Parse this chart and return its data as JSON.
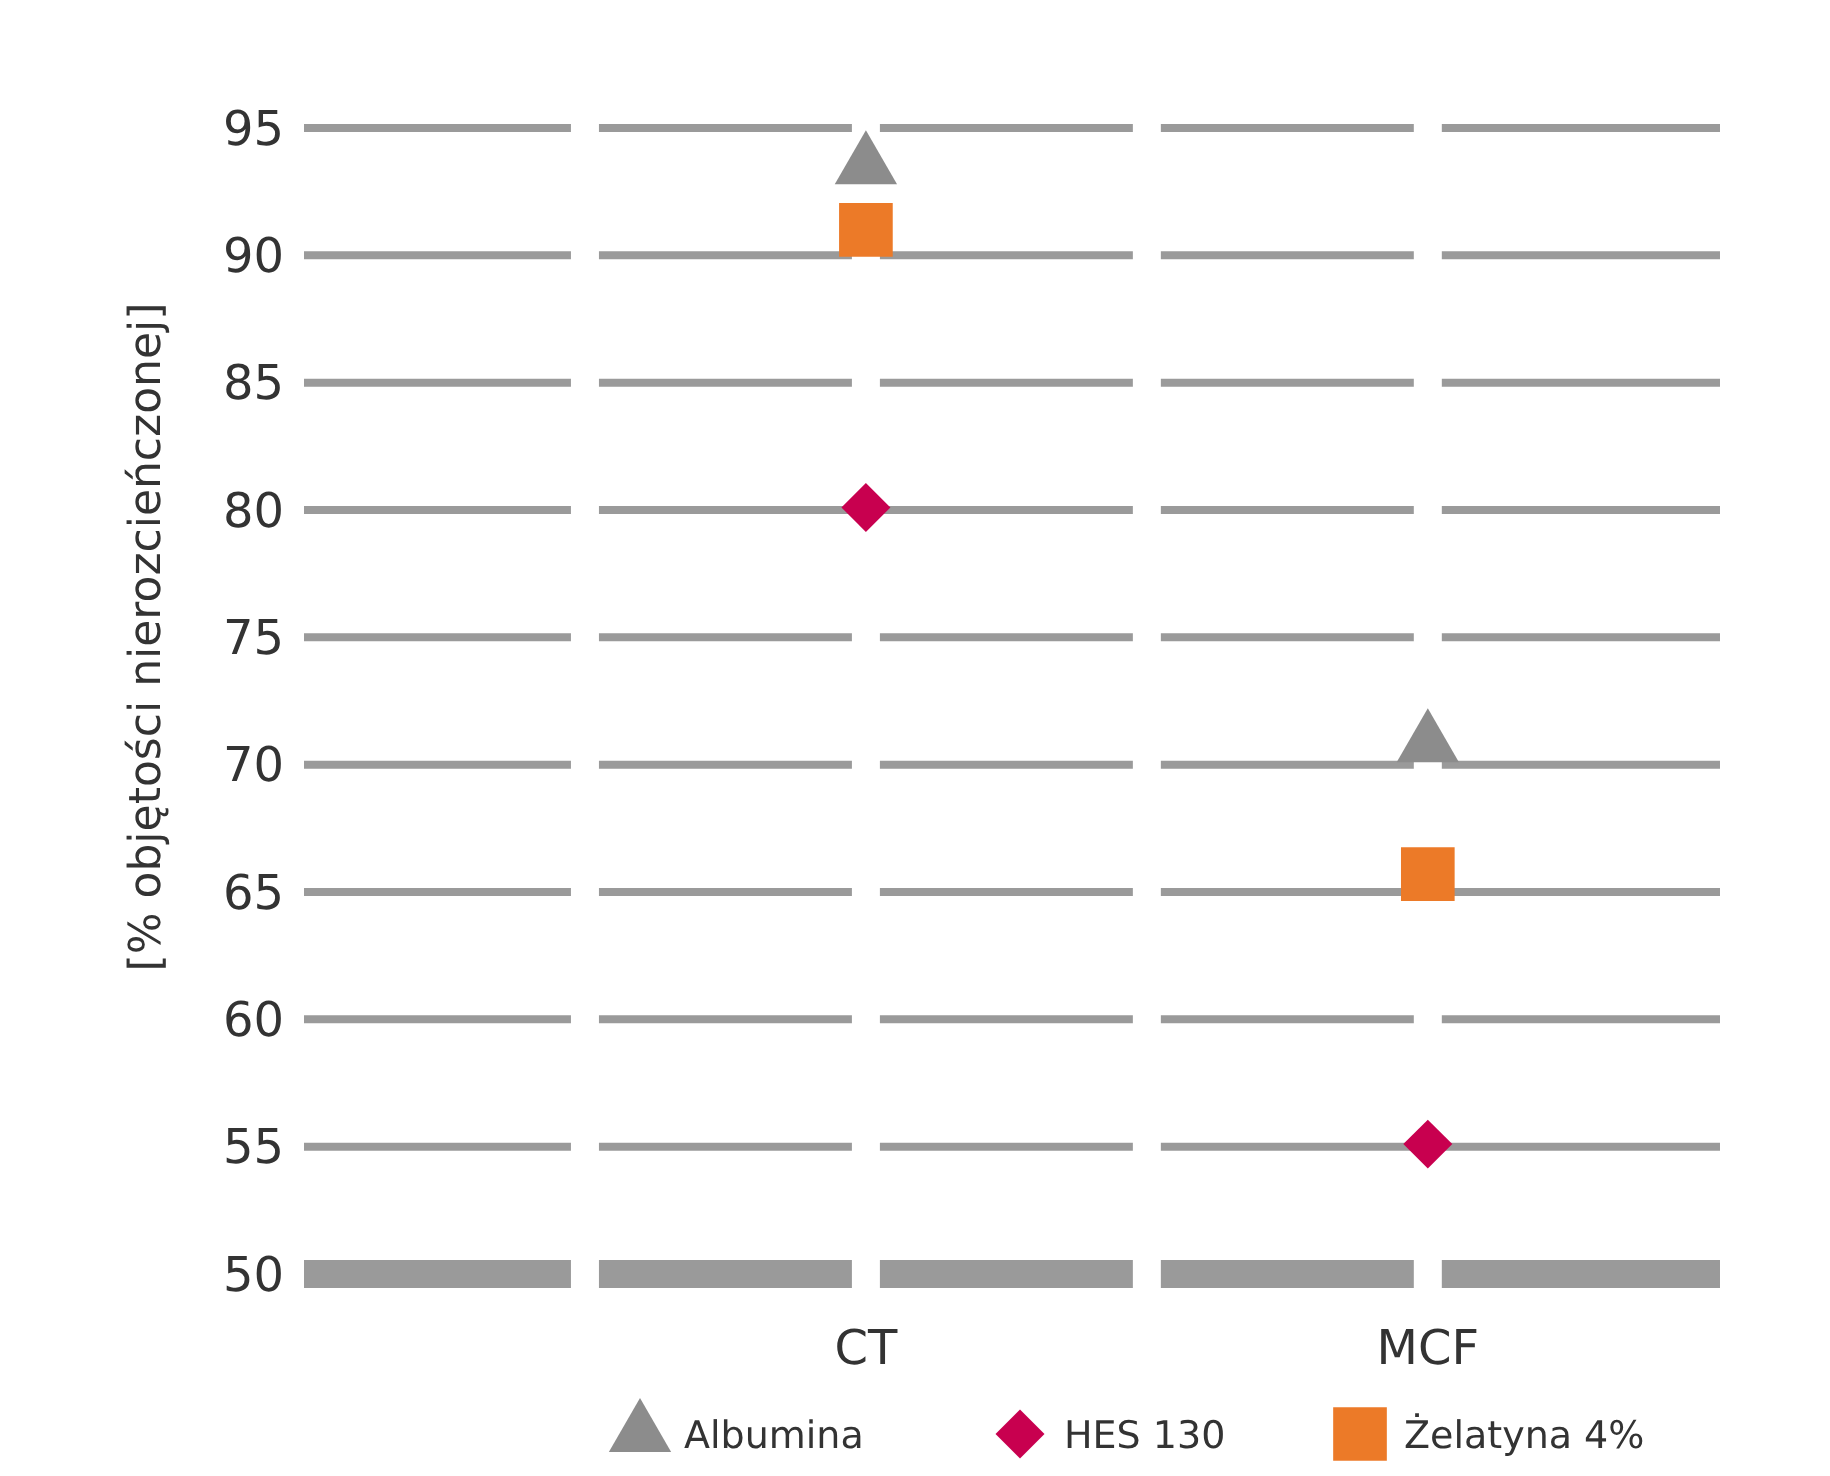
{
  "chart_data": {
    "type": "scatter",
    "ylabel": "[% objętości nierozcieńczonej]",
    "categories": [
      "CT",
      "MCF"
    ],
    "ylim": [
      50,
      95
    ],
    "yticks": [
      50,
      55,
      60,
      65,
      70,
      75,
      80,
      85,
      90,
      95
    ],
    "grid": "y",
    "legend": "bottom",
    "series": [
      {
        "name": "Albumina",
        "color": "#8c8c8c",
        "marker": "triangle",
        "values": [
          93.5,
          70.8
        ]
      },
      {
        "name": "HES 130",
        "color": "#c8004f",
        "marker": "diamond",
        "values": [
          80.1,
          55.1
        ]
      },
      {
        "name": "Żelatyna 4%",
        "color": "#ec7a28",
        "marker": "square",
        "values": [
          91,
          65.7
        ]
      }
    ]
  }
}
